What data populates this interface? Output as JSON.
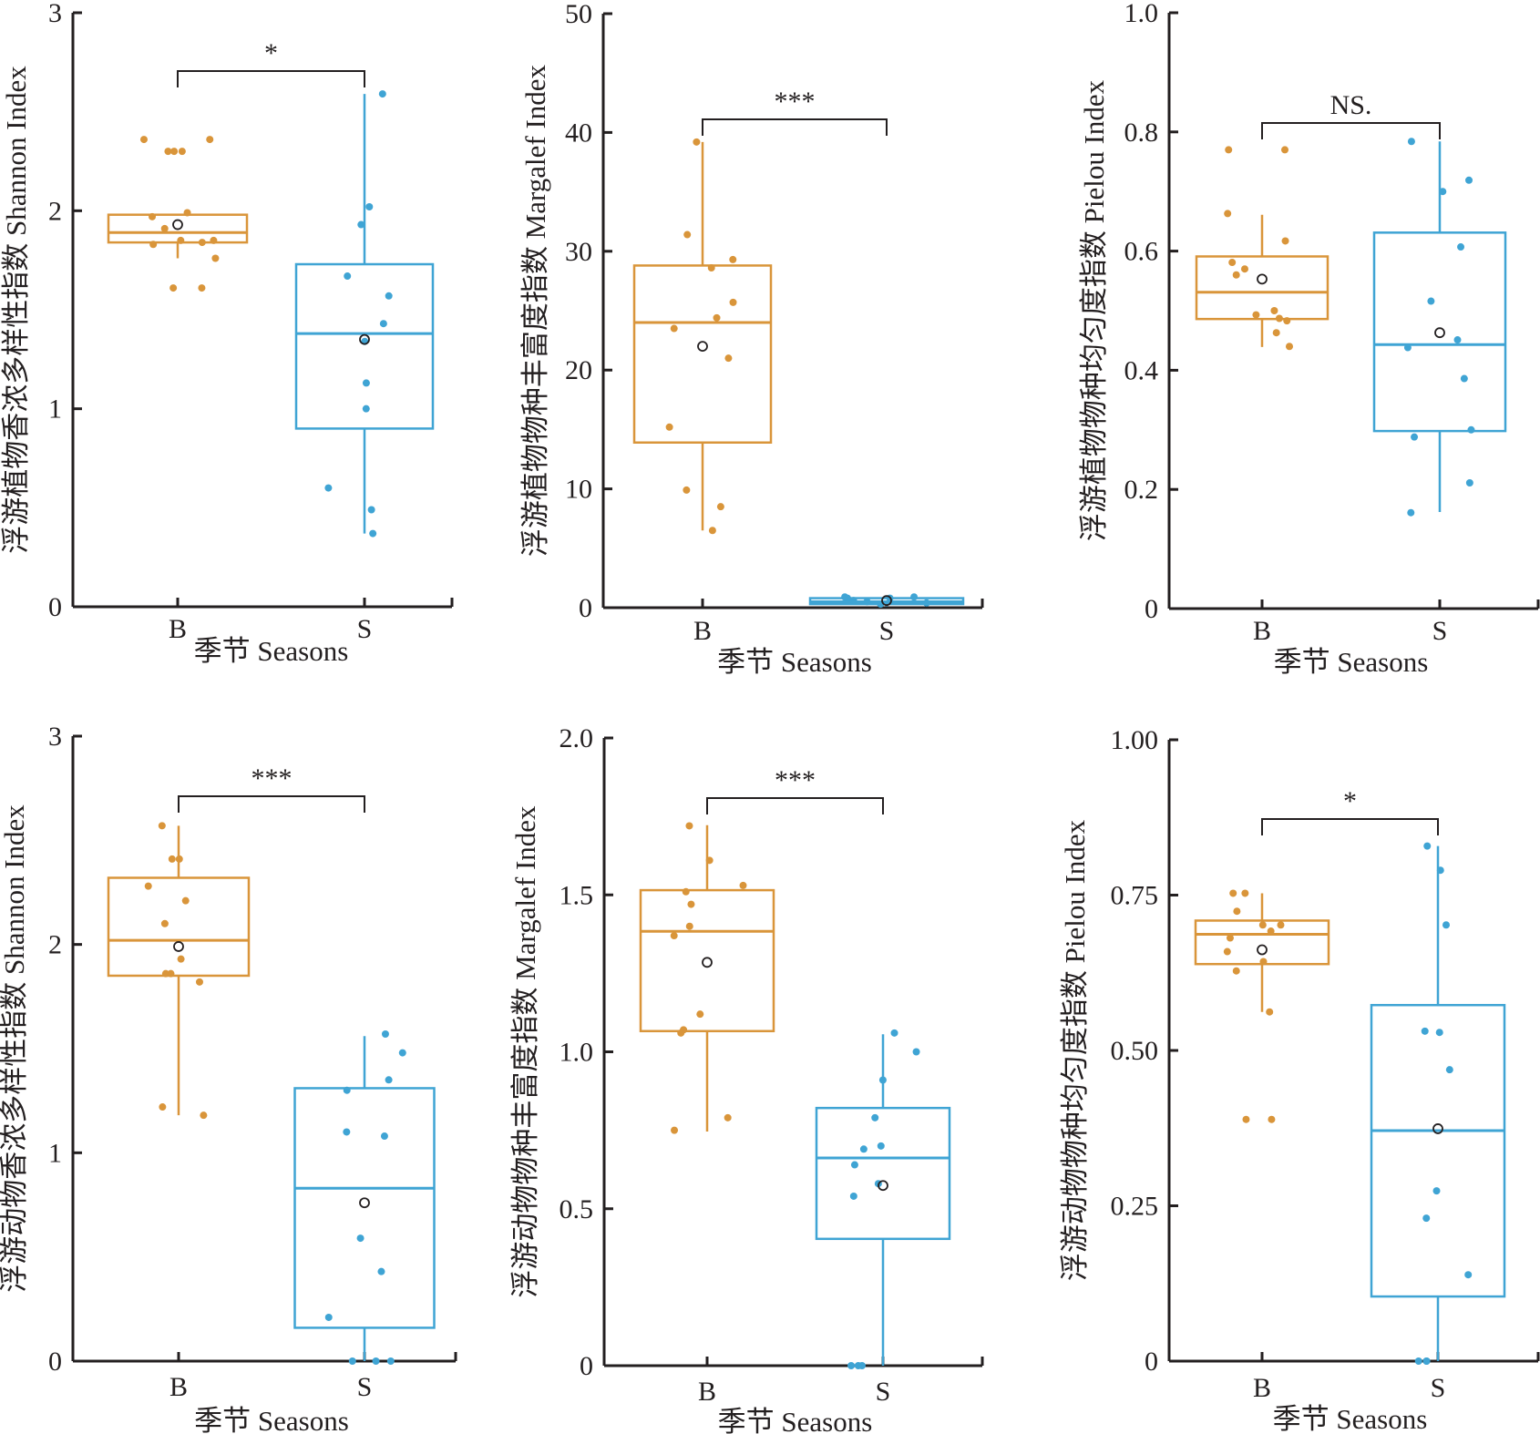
{
  "colors": {
    "B": "#D9953A",
    "S": "#3FA4D4",
    "axis": "#231F20",
    "mean_marker": "#231F20"
  },
  "chart_data": [
    {
      "type": "box",
      "id": "phyto-shannon",
      "ylabel": "浮游植物香浓多样性指数 Shannon Index",
      "xlabel": "季节 Seasons",
      "categories": [
        "B",
        "S"
      ],
      "ylim": [
        0,
        3
      ],
      "yticks": [
        0,
        1,
        2,
        3
      ],
      "ytick_labels": [
        "0",
        "1",
        "2",
        "3"
      ],
      "significance": "*",
      "groups": [
        {
          "name": "B",
          "q1": 1.84,
          "median": 1.89,
          "q3": 1.98,
          "whisker_low": 1.76,
          "whisker_high": 1.98,
          "mean": 1.93,
          "points": [
            2.36,
            2.36,
            2.3,
            2.3,
            2.3,
            1.99,
            1.97,
            1.91,
            1.85,
            1.85,
            1.84,
            1.83,
            1.76,
            1.61,
            1.61
          ]
        },
        {
          "name": "S",
          "q1": 0.9,
          "median": 1.38,
          "q3": 1.73,
          "whisker_low": 0.37,
          "whisker_high": 2.59,
          "mean": 1.35,
          "points": [
            2.59,
            2.02,
            1.93,
            1.67,
            1.57,
            1.43,
            1.34,
            1.13,
            1.0,
            0.6,
            0.49,
            0.37
          ]
        }
      ]
    },
    {
      "type": "box",
      "id": "phyto-margalef",
      "ylabel": "浮游植物物种丰富度指数 Margalef Index",
      "xlabel": "季节 Seasons",
      "categories": [
        "B",
        "S"
      ],
      "ylim": [
        0,
        50
      ],
      "yticks": [
        0,
        10,
        20,
        30,
        40,
        50
      ],
      "ytick_labels": [
        "0",
        "10",
        "20",
        "30",
        "40",
        "50"
      ],
      "significance": "***",
      "groups": [
        {
          "name": "B",
          "q1": 13.9,
          "median": 24.0,
          "q3": 28.8,
          "whisker_low": 6.5,
          "whisker_high": 39.2,
          "mean": 22.0,
          "points": [
            39.2,
            31.4,
            29.3,
            28.6,
            25.7,
            24.4,
            23.5,
            21.0,
            15.2,
            9.9,
            8.5,
            6.5
          ]
        },
        {
          "name": "S",
          "q1": 0.3,
          "median": 0.5,
          "q3": 0.8,
          "whisker_low": 0.1,
          "whisker_high": 0.9,
          "mean": 0.6,
          "points": [
            0.9,
            0.8,
            0.8,
            0.6,
            0.5,
            0.4,
            0.3,
            0.9
          ]
        }
      ]
    },
    {
      "type": "box",
      "id": "phyto-pielou",
      "ylabel": "浮游植物物种均匀度指数 Pielou Index",
      "xlabel": "季节 Seasons",
      "categories": [
        "B",
        "S"
      ],
      "ylim": [
        0,
        1.0
      ],
      "yticks": [
        0,
        0.2,
        0.4,
        0.6,
        0.8,
        1.0
      ],
      "ytick_labels": [
        "0",
        "0.2",
        "0.4",
        "0.6",
        "0.8",
        "1.0"
      ],
      "significance": "NS.",
      "groups": [
        {
          "name": "B",
          "q1": 0.486,
          "median": 0.531,
          "q3": 0.591,
          "whisker_low": 0.439,
          "whisker_high": 0.661,
          "mean": 0.553,
          "points": [
            0.77,
            0.77,
            0.663,
            0.617,
            0.581,
            0.57,
            0.56,
            0.5,
            0.493,
            0.487,
            0.483,
            0.463,
            0.44
          ]
        },
        {
          "name": "S",
          "q1": 0.298,
          "median": 0.443,
          "q3": 0.631,
          "whisker_low": 0.162,
          "whisker_high": 0.784,
          "mean": 0.463,
          "points": [
            0.784,
            0.719,
            0.7,
            0.607,
            0.516,
            0.451,
            0.438,
            0.386,
            0.3,
            0.288,
            0.211,
            0.161
          ]
        }
      ]
    },
    {
      "type": "box",
      "id": "zoo-shannon",
      "ylabel": "浮游动物香浓多样性指数 Shannon Index",
      "xlabel": "季节 Seasons",
      "categories": [
        "B",
        "S"
      ],
      "ylim": [
        0,
        3
      ],
      "yticks": [
        0,
        1,
        2,
        3
      ],
      "ytick_labels": [
        "0",
        "1",
        "2",
        "3"
      ],
      "significance": "***",
      "groups": [
        {
          "name": "B",
          "q1": 1.85,
          "median": 2.02,
          "q3": 2.32,
          "whisker_low": 1.18,
          "whisker_high": 2.57,
          "mean": 1.99,
          "points": [
            2.57,
            2.41,
            2.41,
            2.28,
            2.21,
            2.1,
            1.93,
            1.86,
            1.86,
            1.82,
            1.22,
            1.18
          ]
        },
        {
          "name": "S",
          "q1": 0.16,
          "median": 0.83,
          "q3": 1.31,
          "whisker_low": 0,
          "whisker_high": 1.56,
          "mean": 0.76,
          "points": [
            1.57,
            1.48,
            1.35,
            1.3,
            1.1,
            1.08,
            0.59,
            0.43,
            0.21,
            0,
            0,
            0
          ]
        }
      ]
    },
    {
      "type": "box",
      "id": "zoo-margalef",
      "ylabel": "浮游动物物种丰富度指数 Margalef Index",
      "xlabel": "季节 Seasons",
      "categories": [
        "B",
        "S"
      ],
      "ylim": [
        0,
        2.0
      ],
      "yticks": [
        0,
        0.5,
        1.0,
        1.5,
        2.0
      ],
      "ytick_labels": [
        "0",
        "0.5",
        "1.0",
        "1.5",
        "2.0"
      ],
      "significance": "***",
      "groups": [
        {
          "name": "B",
          "q1": 1.066,
          "median": 1.384,
          "q3": 1.515,
          "whisker_low": 0.746,
          "whisker_high": 1.722,
          "mean": 1.285,
          "points": [
            1.72,
            1.61,
            1.53,
            1.51,
            1.47,
            1.4,
            1.37,
            1.12,
            1.07,
            1.06,
            0.79,
            0.75
          ]
        },
        {
          "name": "S",
          "q1": 0.404,
          "median": 0.662,
          "q3": 0.821,
          "whisker_low": 0,
          "whisker_high": 1.056,
          "mean": 0.574,
          "points": [
            1.06,
            1.0,
            0.91,
            0.79,
            0.7,
            0.69,
            0.64,
            0.58,
            0.54,
            0,
            0,
            0
          ]
        }
      ]
    },
    {
      "type": "box",
      "id": "zoo-pielou",
      "ylabel": "浮游动物物种均匀度指数 Pielou Index",
      "xlabel": "季节 Seasons",
      "categories": [
        "B",
        "S"
      ],
      "ylim": [
        0,
        1.0
      ],
      "yticks": [
        0,
        0.25,
        0.5,
        0.75,
        1.0
      ],
      "ytick_labels": [
        "0",
        "0.25",
        "0.50",
        "0.75",
        "1.00"
      ],
      "significance": "*",
      "groups": [
        {
          "name": "B",
          "q1": 0.639,
          "median": 0.687,
          "q3": 0.709,
          "whisker_low": 0.562,
          "whisker_high": 0.753,
          "mean": 0.662,
          "points": [
            0.753,
            0.753,
            0.724,
            0.702,
            0.702,
            0.692,
            0.681,
            0.659,
            0.643,
            0.628,
            0.562,
            0.389,
            0.389
          ]
        },
        {
          "name": "S",
          "q1": 0.104,
          "median": 0.371,
          "q3": 0.573,
          "whisker_low": 0,
          "whisker_high": 0.829,
          "mean": 0.374,
          "points": [
            0.829,
            0.79,
            0.702,
            0.531,
            0.529,
            0.469,
            0.274,
            0.23,
            0.139,
            0,
            0,
            0
          ]
        }
      ]
    }
  ]
}
